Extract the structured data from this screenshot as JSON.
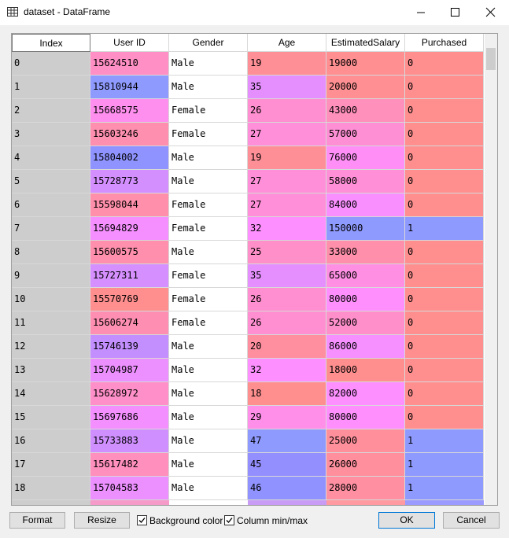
{
  "window": {
    "title": "dataset - DataFrame"
  },
  "table": {
    "columns": [
      "Index",
      "User ID",
      "Gender",
      "Age",
      "EstimatedSalary",
      "Purchased"
    ],
    "rows": [
      [
        0,
        15624510,
        "Male",
        19,
        19000,
        0
      ],
      [
        1,
        15810944,
        "Male",
        35,
        20000,
        0
      ],
      [
        2,
        15668575,
        "Female",
        26,
        43000,
        0
      ],
      [
        3,
        15603246,
        "Female",
        27,
        57000,
        0
      ],
      [
        4,
        15804002,
        "Male",
        19,
        76000,
        0
      ],
      [
        5,
        15728773,
        "Male",
        27,
        58000,
        0
      ],
      [
        6,
        15598044,
        "Female",
        27,
        84000,
        0
      ],
      [
        7,
        15694829,
        "Female",
        32,
        150000,
        1
      ],
      [
        8,
        15600575,
        "Male",
        25,
        33000,
        0
      ],
      [
        9,
        15727311,
        "Female",
        35,
        65000,
        0
      ],
      [
        10,
        15570769,
        "Female",
        26,
        80000,
        0
      ],
      [
        11,
        15606274,
        "Female",
        26,
        52000,
        0
      ],
      [
        12,
        15746139,
        "Male",
        20,
        86000,
        0
      ],
      [
        13,
        15704987,
        "Male",
        32,
        18000,
        0
      ],
      [
        14,
        15628972,
        "Male",
        18,
        82000,
        0
      ],
      [
        15,
        15697686,
        "Male",
        29,
        80000,
        0
      ],
      [
        16,
        15733883,
        "Male",
        47,
        25000,
        1
      ],
      [
        17,
        15617482,
        "Male",
        45,
        26000,
        1
      ],
      [
        18,
        15704583,
        "Male",
        46,
        28000,
        1
      ]
    ]
  },
  "buttons": {
    "format": "Format",
    "resize": "Resize",
    "ok": "OK",
    "cancel": "Cancel"
  },
  "options": {
    "background_color": "Background color",
    "column_minmax": "Column min/max"
  }
}
